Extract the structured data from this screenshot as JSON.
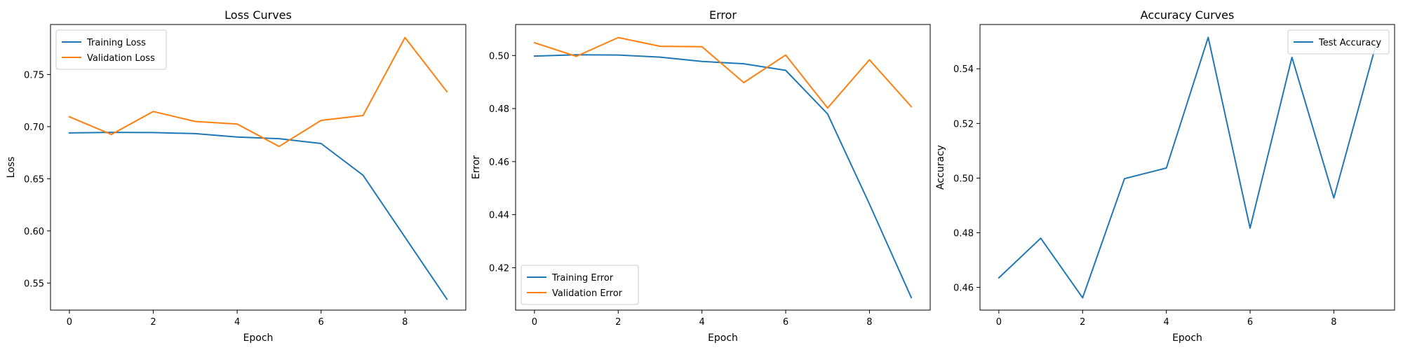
{
  "chart_data": [
    {
      "type": "line",
      "title": "Loss Curves",
      "xlabel": "Epoch",
      "ylabel": "Loss",
      "x": [
        0,
        1,
        2,
        3,
        4,
        5,
        6,
        7,
        8,
        9
      ],
      "xlim": [
        -0.45,
        9.45
      ],
      "ylim": [
        0.524,
        0.798
      ],
      "xticks": [
        0,
        2,
        4,
        6,
        8
      ],
      "yticks": [
        0.55,
        0.6,
        0.65,
        0.7,
        0.75
      ],
      "ytick_labels": [
        "0.55",
        "0.60",
        "0.65",
        "0.70",
        "0.75"
      ],
      "grid": false,
      "legend": "upper-left",
      "series": [
        {
          "name": "Training Loss",
          "color": "#1f77b4",
          "values": [
            0.694,
            0.6945,
            0.6943,
            0.6933,
            0.69,
            0.6885,
            0.6838,
            0.6534,
            0.594,
            0.5345
          ]
        },
        {
          "name": "Validation Loss",
          "color": "#ff7f0e",
          "values": [
            0.7095,
            0.6925,
            0.7145,
            0.705,
            0.7025,
            0.681,
            0.706,
            0.7107,
            0.7855,
            0.7335
          ]
        }
      ]
    },
    {
      "type": "line",
      "title": "Error",
      "xlabel": "Epoch",
      "ylabel": "Error",
      "x": [
        0,
        1,
        2,
        3,
        4,
        5,
        6,
        7,
        8,
        9
      ],
      "xlim": [
        -0.45,
        9.45
      ],
      "ylim": [
        0.404,
        0.5117
      ],
      "xticks": [
        0,
        2,
        4,
        6,
        8
      ],
      "yticks": [
        0.42,
        0.44,
        0.46,
        0.48,
        0.5
      ],
      "ytick_labels": [
        "0.42",
        "0.44",
        "0.46",
        "0.48",
        "0.50"
      ],
      "grid": false,
      "legend": "lower-left",
      "series": [
        {
          "name": "Training Error",
          "color": "#1f77b4",
          "values": [
            0.4998,
            0.5003,
            0.5002,
            0.4994,
            0.4978,
            0.4969,
            0.4944,
            0.478,
            0.444,
            0.4087
          ]
        },
        {
          "name": "Validation Error",
          "color": "#ff7f0e",
          "values": [
            0.5048,
            0.4997,
            0.5068,
            0.5035,
            0.5033,
            0.4898,
            0.5002,
            0.4802,
            0.4984,
            0.4807
          ]
        }
      ]
    },
    {
      "type": "line",
      "title": "Accuracy Curves",
      "xlabel": "Epoch",
      "ylabel": "Accuracy",
      "x": [
        0,
        1,
        2,
        3,
        4,
        5,
        6,
        7,
        8,
        9
      ],
      "xlim": [
        -0.45,
        9.45
      ],
      "ylim": [
        0.4517,
        0.5562
      ],
      "xticks": [
        0,
        2,
        4,
        6,
        8
      ],
      "yticks": [
        0.46,
        0.48,
        0.5,
        0.52,
        0.54
      ],
      "ytick_labels": [
        "0.46",
        "0.48",
        "0.50",
        "0.52",
        "0.54"
      ],
      "grid": false,
      "legend": "upper-right",
      "series": [
        {
          "name": "Test Accuracy",
          "color": "#1f77b4",
          "values": [
            0.4635,
            0.478,
            0.4562,
            0.4998,
            0.5037,
            0.5515,
            0.4817,
            0.5442,
            0.4927,
            0.5485
          ]
        }
      ]
    }
  ]
}
